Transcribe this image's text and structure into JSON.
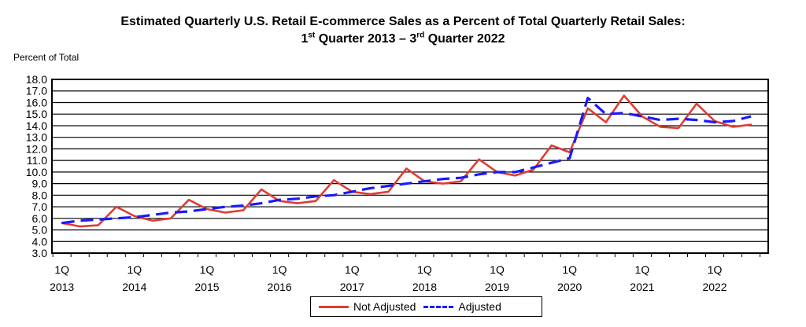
{
  "title_line1": "Estimated Quarterly U.S. Retail E-commerce Sales as a Percent of Total Quarterly Retail Sales:",
  "title_line2": {
    "part1": "1",
    "sup1": "st",
    "part2": " Quarter 2013 – 3",
    "sup2": "rd",
    "part3": " Quarter 2022"
  },
  "chart_data": {
    "type": "line",
    "ylabel": "Percent of Total",
    "ylim": [
      3.0,
      18.0
    ],
    "ytick_step": 1.0,
    "grid": true,
    "legend_position": "bottom-center",
    "x_ticks": [
      {
        "q": "1Q",
        "year": "2013"
      },
      {
        "q": "1Q",
        "year": "2014"
      },
      {
        "q": "1Q",
        "year": "2015"
      },
      {
        "q": "1Q",
        "year": "2016"
      },
      {
        "q": "1Q",
        "year": "2017"
      },
      {
        "q": "1Q",
        "year": "2018"
      },
      {
        "q": "1Q",
        "year": "2019"
      },
      {
        "q": "1Q",
        "year": "2020"
      },
      {
        "q": "1Q",
        "year": "2021"
      },
      {
        "q": "1Q",
        "year": "2022"
      }
    ],
    "x": [
      "2013Q1",
      "2013Q2",
      "2013Q3",
      "2013Q4",
      "2014Q1",
      "2014Q2",
      "2014Q3",
      "2014Q4",
      "2015Q1",
      "2015Q2",
      "2015Q3",
      "2015Q4",
      "2016Q1",
      "2016Q2",
      "2016Q3",
      "2016Q4",
      "2017Q1",
      "2017Q2",
      "2017Q3",
      "2017Q4",
      "2018Q1",
      "2018Q2",
      "2018Q3",
      "2018Q4",
      "2019Q1",
      "2019Q2",
      "2019Q3",
      "2019Q4",
      "2020Q1",
      "2020Q2",
      "2020Q3",
      "2020Q4",
      "2021Q1",
      "2021Q2",
      "2021Q3",
      "2021Q4",
      "2022Q1",
      "2022Q2",
      "2022Q3"
    ],
    "series": [
      {
        "name": "Not Adjusted",
        "color": "#e03c31",
        "style": "solid",
        "values": [
          5.6,
          5.3,
          5.4,
          7.0,
          6.2,
          5.8,
          6.0,
          7.6,
          6.8,
          6.5,
          6.7,
          8.5,
          7.5,
          7.3,
          7.5,
          9.3,
          8.3,
          8.1,
          8.3,
          10.3,
          9.2,
          9.0,
          9.2,
          11.1,
          10.0,
          9.7,
          10.2,
          12.3,
          11.7,
          15.5,
          14.3,
          16.6,
          14.8,
          13.9,
          13.8,
          15.9,
          14.4,
          13.9,
          14.1
        ]
      },
      {
        "name": "Adjusted",
        "color": "#1a1aff",
        "style": "dashed",
        "values": [
          5.6,
          5.8,
          5.9,
          6.0,
          6.1,
          6.3,
          6.5,
          6.6,
          6.8,
          7.0,
          7.1,
          7.3,
          7.6,
          7.7,
          7.9,
          8.0,
          8.3,
          8.6,
          8.8,
          9.0,
          9.2,
          9.4,
          9.5,
          9.8,
          10.0,
          10.0,
          10.4,
          10.8,
          11.2,
          16.4,
          15.0,
          15.1,
          14.8,
          14.5,
          14.6,
          14.5,
          14.3,
          14.4,
          14.8
        ]
      }
    ]
  }
}
